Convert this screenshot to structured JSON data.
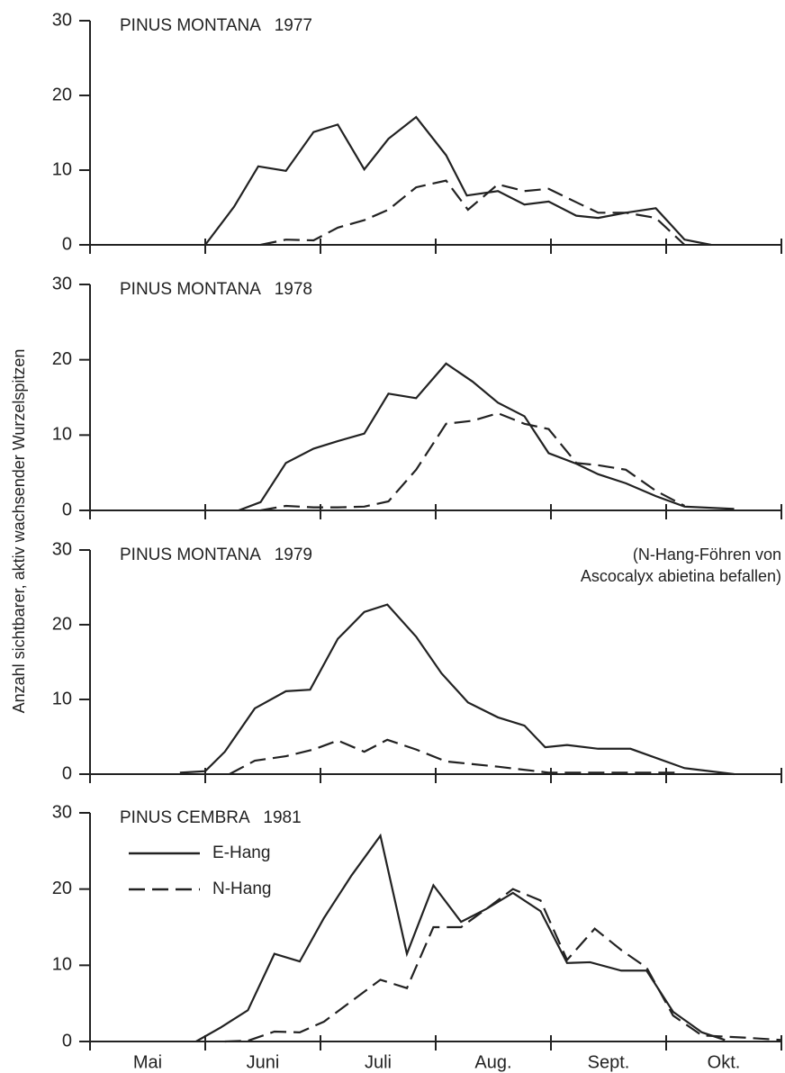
{
  "chart_data": [
    {
      "type": "line",
      "title": "PINUS MONTANA   1977",
      "ylabel": "Anzahl sichtbarer, aktiv wachsender Wurzelspitzen",
      "xlim": [
        0,
        6
      ],
      "xticks": [
        0,
        1,
        2,
        3,
        4,
        5,
        6
      ],
      "ylim": [
        0,
        30
      ],
      "yticks": [
        0,
        10,
        20,
        30
      ],
      "series": [
        {
          "style": "solid",
          "color": "#222222",
          "x": [
            1.0,
            1.25,
            1.46,
            1.7,
            1.94,
            2.15,
            2.38,
            2.59,
            2.83,
            3.09,
            3.27,
            3.54,
            3.77,
            3.98,
            4.22,
            4.41,
            4.65,
            4.91,
            5.16,
            5.39
          ],
          "values": [
            0,
            5.1,
            10.5,
            9.9,
            15.1,
            16.1,
            10.1,
            14.2,
            17.1,
            12.0,
            6.6,
            7.2,
            5.4,
            5.8,
            3.9,
            3.6,
            4.3,
            4.9,
            0.7,
            0
          ]
        },
        {
          "style": "dashed",
          "color": "#222222",
          "x": [
            1.48,
            1.7,
            1.94,
            2.15,
            2.38,
            2.59,
            2.83,
            3.09,
            3.28,
            3.54,
            3.77,
            3.98,
            4.22,
            4.41,
            4.65,
            4.91,
            5.16
          ],
          "values": [
            0,
            0.7,
            0.6,
            2.3,
            3.3,
            4.7,
            7.7,
            8.6,
            4.7,
            8.1,
            7.2,
            7.5,
            5.7,
            4.3,
            4.3,
            3.6,
            0
          ]
        }
      ]
    },
    {
      "type": "line",
      "title": "PINUS MONTANA   1978",
      "xlim": [
        0,
        6
      ],
      "xticks": [
        0,
        1,
        2,
        3,
        4,
        5,
        6
      ],
      "ylim": [
        0,
        30
      ],
      "yticks": [
        0,
        10,
        20,
        30
      ],
      "series": [
        {
          "style": "solid",
          "color": "#222222",
          "x": [
            1.29,
            1.48,
            1.7,
            1.94,
            2.15,
            2.38,
            2.59,
            2.83,
            3.09,
            3.32,
            3.54,
            3.77,
            3.98,
            4.22,
            4.41,
            4.65,
            4.91,
            5.16,
            5.59
          ],
          "values": [
            0,
            1.1,
            6.3,
            8.2,
            9.2,
            10.2,
            15.5,
            14.9,
            19.5,
            17.1,
            14.3,
            12.5,
            7.6,
            6.2,
            4.8,
            3.6,
            1.9,
            0.5,
            0.2
          ]
        },
        {
          "style": "dashed",
          "color": "#222222",
          "x": [
            1.48,
            1.7,
            1.94,
            2.15,
            2.38,
            2.59,
            2.83,
            3.09,
            3.32,
            3.54,
            3.77,
            3.98,
            4.22,
            4.41,
            4.65,
            4.91,
            5.16
          ],
          "values": [
            0,
            0.6,
            0.4,
            0.4,
            0.5,
            1.2,
            5.4,
            11.5,
            11.9,
            12.9,
            11.5,
            10.8,
            6.3,
            6.0,
            5.4,
            2.6,
            0.6
          ]
        }
      ]
    },
    {
      "type": "line",
      "title": "PINUS MONTANA   1979",
      "annotation": [
        "(N-Hang-Föhren von",
        "Ascocalyx abietina befallen)"
      ],
      "xlim": [
        0,
        6
      ],
      "xticks": [
        0,
        1,
        2,
        3,
        4,
        5,
        6
      ],
      "ylim": [
        0,
        30
      ],
      "yticks": [
        0,
        10,
        20,
        30
      ],
      "series": [
        {
          "style": "solid",
          "color": "#222222",
          "x": [
            0.78,
            1.0,
            1.17,
            1.43,
            1.7,
            1.91,
            2.15,
            2.38,
            2.58,
            2.83,
            3.05,
            3.28,
            3.54,
            3.77,
            3.95,
            4.14,
            4.41,
            4.69,
            5.16,
            5.59
          ],
          "values": [
            0.2,
            0.4,
            3.0,
            8.8,
            11.1,
            11.3,
            18.1,
            21.7,
            22.7,
            18.4,
            13.5,
            9.6,
            7.6,
            6.5,
            3.6,
            3.9,
            3.4,
            3.4,
            0.8,
            0
          ]
        },
        {
          "style": "dashed",
          "color": "#222222",
          "x": [
            1.21,
            1.43,
            1.7,
            1.94,
            2.15,
            2.38,
            2.58,
            2.83,
            3.09,
            3.54,
            3.98,
            5.08
          ],
          "values": [
            0,
            1.8,
            2.4,
            3.3,
            4.5,
            3.0,
            4.6,
            3.3,
            1.7,
            1.0,
            0.2,
            0.2
          ]
        }
      ]
    },
    {
      "type": "line",
      "title": "PINUS CEMBRA   1981",
      "categories": [
        "Mai",
        "Juni",
        "Juli",
        "Aug.",
        "Sept.",
        "Okt."
      ],
      "xlim": [
        0,
        6
      ],
      "xticks": [
        0,
        1,
        2,
        3,
        4,
        5,
        6
      ],
      "ylim": [
        0,
        30
      ],
      "yticks": [
        0,
        10,
        20,
        30
      ],
      "series": [
        {
          "name": "E-Hang",
          "style": "solid",
          "color": "#222222",
          "x": [
            0.92,
            1.13,
            1.37,
            1.6,
            1.82,
            2.03,
            2.27,
            2.52,
            2.75,
            2.98,
            3.22,
            3.44,
            3.67,
            3.91,
            4.14,
            4.34,
            4.61,
            4.83,
            5.06,
            5.31,
            5.51
          ],
          "values": [
            0,
            1.8,
            4.1,
            11.5,
            10.5,
            16.2,
            21.8,
            27.0,
            11.5,
            20.5,
            15.7,
            17.4,
            19.5,
            17.1,
            10.3,
            10.4,
            9.3,
            9.3,
            3.9,
            1.2,
            0.2
          ]
        },
        {
          "name": "N-Hang",
          "style": "dashed",
          "color": "#222222",
          "x": [
            1.17,
            1.37,
            1.6,
            1.82,
            2.03,
            2.27,
            2.52,
            2.75,
            2.98,
            3.22,
            3.44,
            3.67,
            3.91,
            4.14,
            4.38,
            4.61,
            4.83,
            5.06,
            5.31,
            5.69,
            6.0
          ],
          "values": [
            0,
            0.1,
            1.3,
            1.2,
            2.6,
            5.3,
            8.1,
            7.0,
            15.0,
            15.0,
            17.4,
            20.0,
            18.5,
            10.7,
            14.8,
            12.0,
            9.7,
            3.4,
            0.8,
            0.5,
            0.2
          ]
        }
      ]
    }
  ]
}
